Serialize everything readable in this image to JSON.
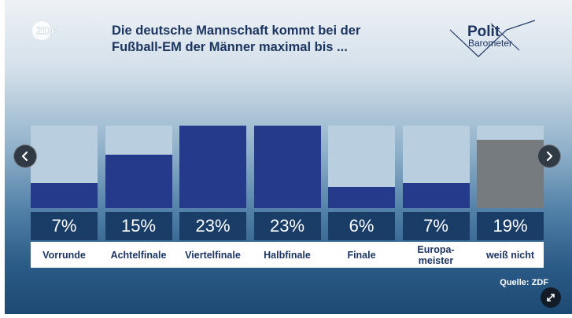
{
  "header": {
    "title": "Die deutsche Mannschaft kommt bei der Fußball-EM der Männer maximal bis ...",
    "brand_logo": "ZDF",
    "program_logo_line1": "Polit",
    "program_logo_line2": "Barometer"
  },
  "source": "Quelle: ZDF",
  "controls": {
    "prev_icon": "chevron-left-icon",
    "next_icon": "chevron-right-icon",
    "expand_icon": "expand-icon"
  },
  "colors": {
    "bar": "#253a8a",
    "bar_neutral": "#767b80",
    "track": "#b9cfdf",
    "value_box": "#193d66",
    "title": "#1c3560"
  },
  "chart_data": {
    "type": "bar",
    "title": "Die deutsche Mannschaft kommt bei der Fußball-EM der Männer maximal bis ...",
    "categories": [
      "Vorrunde",
      "Achtelfinale",
      "Viertelfinale",
      "Halbfinale",
      "Finale",
      "Europa-meister",
      "weiß nicht"
    ],
    "category_lines": [
      [
        "Vorrunde"
      ],
      [
        "Achtelfinale"
      ],
      [
        "Viertelfinale"
      ],
      [
        "Halbfinale"
      ],
      [
        "Finale"
      ],
      [
        "Europa-",
        "meister"
      ],
      [
        "weiß nicht"
      ]
    ],
    "values": [
      7,
      15,
      23,
      23,
      6,
      7,
      19
    ],
    "value_labels": [
      "7%",
      "15%",
      "23%",
      "23%",
      "6%",
      "7%",
      "19%"
    ],
    "unit": "%",
    "ylim": [
      0,
      23
    ],
    "highlight": [
      false,
      false,
      false,
      false,
      false,
      false,
      true
    ],
    "source": "Quelle: ZDF"
  }
}
